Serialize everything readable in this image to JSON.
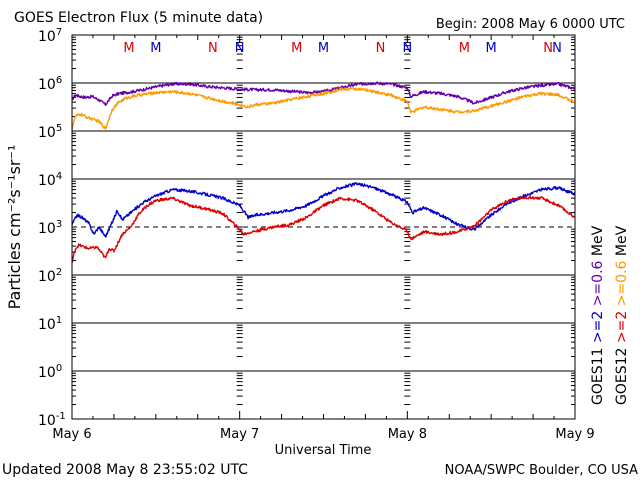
{
  "chart_data": {
    "type": "line",
    "title": "GOES Electron Flux (5 minute data)",
    "begin_label": "Begin: 2008 May 6 0000 UTC",
    "xlabel": "Universal Time",
    "ylabel": "Particles cm⁻²s⁻¹sr⁻¹",
    "footer_left": "Updated 2008 May  8 23:55:02 UTC",
    "footer_right": "NOAA/SWPC Boulder, CO USA",
    "x_unit": "days since 2008-05-06 00:00 UTC",
    "xlim": [
      0,
      3
    ],
    "x_ticks": [
      {
        "value": 0,
        "label": "May 6"
      },
      {
        "value": 1,
        "label": "May 7"
      },
      {
        "value": 2,
        "label": "May 8"
      },
      {
        "value": 3,
        "label": "May 9"
      }
    ],
    "y_scale": "log",
    "ylim_exponent": [
      -1,
      7
    ],
    "y_ticks": [
      {
        "exp": 7,
        "base": "10",
        "sup": "7"
      },
      {
        "exp": 6,
        "base": "10",
        "sup": "6"
      },
      {
        "exp": 5,
        "base": "10",
        "sup": "5"
      },
      {
        "exp": 4,
        "base": "10",
        "sup": "4"
      },
      {
        "exp": 3,
        "base": "10",
        "sup": "3"
      },
      {
        "exp": 2,
        "base": "10",
        "sup": "2"
      },
      {
        "exp": 1,
        "base": "10",
        "sup": "1"
      },
      {
        "exp": 0,
        "base": "10",
        "sup": "0"
      },
      {
        "exp": -1,
        "base": "10",
        "sup": "-1"
      }
    ],
    "threshold_exponent": 3,
    "mn_markers": [
      {
        "x": 0.34,
        "label": "M",
        "color": "#dd0000"
      },
      {
        "x": 0.5,
        "label": "M",
        "color": "#0000cc"
      },
      {
        "x": 0.84,
        "label": "N",
        "color": "#dd0000"
      },
      {
        "x": 1.0,
        "label": "N",
        "color": "#0000cc"
      },
      {
        "x": 1.34,
        "label": "M",
        "color": "#dd0000"
      },
      {
        "x": 1.5,
        "label": "M",
        "color": "#0000cc"
      },
      {
        "x": 1.84,
        "label": "N",
        "color": "#dd0000"
      },
      {
        "x": 2.0,
        "label": "N",
        "color": "#0000cc"
      },
      {
        "x": 2.34,
        "label": "M",
        "color": "#dd0000"
      },
      {
        "x": 2.5,
        "label": "M",
        "color": "#0000cc"
      },
      {
        "x": 2.84,
        "label": "N",
        "color": "#dd0000"
      },
      {
        "x": 3.0,
        "label": "N",
        "color": "#0000cc"
      }
    ],
    "legend": {
      "goes11_label": "GOES11",
      "goes12_label": "GOES12",
      "goes11_entries": [
        {
          "text": ">=2",
          "color": "#0000cc"
        },
        {
          "text": ">=0.6",
          "color": "#6600aa"
        }
      ],
      "goes12_entries": [
        {
          "text": ">=2",
          "color": "#dd0000"
        },
        {
          "text": ">=0.6",
          "color": "#ff9900"
        }
      ],
      "unit_label": "MeV"
    },
    "series": [
      {
        "name": "GOES11 >=0.6 MeV",
        "color": "#6600aa",
        "x": [
          0,
          0.02,
          0.05,
          0.08,
          0.12,
          0.16,
          0.2,
          0.24,
          0.28,
          0.32,
          0.36,
          0.42,
          0.5,
          0.6,
          0.7,
          0.8,
          0.9,
          1.0,
          1.1,
          1.2,
          1.3,
          1.4,
          1.5,
          1.6,
          1.7,
          1.8,
          1.9,
          2.0,
          2.02,
          2.1,
          2.2,
          2.3,
          2.4,
          2.5,
          2.6,
          2.7,
          2.8,
          2.9,
          3.0
        ],
        "y_exp": [
          5.65,
          5.75,
          5.72,
          5.7,
          5.72,
          5.65,
          5.55,
          5.73,
          5.78,
          5.8,
          5.82,
          5.86,
          5.92,
          5.98,
          5.98,
          5.93,
          5.9,
          5.87,
          5.86,
          5.86,
          5.83,
          5.8,
          5.82,
          5.9,
          5.97,
          6.0,
          5.98,
          5.9,
          5.72,
          5.82,
          5.78,
          5.72,
          5.58,
          5.7,
          5.82,
          5.9,
          5.95,
          5.98,
          5.88
        ]
      },
      {
        "name": "GOES12 >=0.6 MeV",
        "color": "#ff9900",
        "x": [
          0,
          0.02,
          0.05,
          0.08,
          0.12,
          0.16,
          0.2,
          0.24,
          0.28,
          0.32,
          0.36,
          0.42,
          0.5,
          0.6,
          0.7,
          0.8,
          0.9,
          1.0,
          1.05,
          1.1,
          1.2,
          1.3,
          1.4,
          1.5,
          1.6,
          1.7,
          1.8,
          1.9,
          2.0,
          2.02,
          2.1,
          2.2,
          2.3,
          2.4,
          2.5,
          2.6,
          2.7,
          2.8,
          2.9,
          3.0
        ],
        "y_exp": [
          5.05,
          5.3,
          5.35,
          5.3,
          5.25,
          5.2,
          5.05,
          5.45,
          5.6,
          5.68,
          5.72,
          5.76,
          5.8,
          5.82,
          5.78,
          5.7,
          5.62,
          5.55,
          5.5,
          5.55,
          5.58,
          5.65,
          5.72,
          5.78,
          5.87,
          5.88,
          5.82,
          5.75,
          5.62,
          5.38,
          5.5,
          5.45,
          5.4,
          5.42,
          5.52,
          5.62,
          5.72,
          5.78,
          5.75,
          5.6
        ]
      },
      {
        "name": "GOES11 >=2 MeV",
        "color": "#0000cc",
        "x": [
          0,
          0.03,
          0.06,
          0.1,
          0.13,
          0.16,
          0.2,
          0.24,
          0.27,
          0.3,
          0.35,
          0.42,
          0.5,
          0.6,
          0.7,
          0.8,
          0.9,
          1.0,
          1.05,
          1.1,
          1.2,
          1.3,
          1.4,
          1.5,
          1.6,
          1.7,
          1.8,
          1.9,
          2.0,
          2.03,
          2.1,
          2.2,
          2.3,
          2.4,
          2.5,
          2.6,
          2.7,
          2.8,
          2.9,
          3.0
        ],
        "y_exp": [
          3.05,
          3.25,
          3.2,
          3.08,
          2.85,
          3.0,
          2.8,
          3.1,
          3.35,
          3.15,
          3.3,
          3.5,
          3.65,
          3.78,
          3.75,
          3.68,
          3.6,
          3.45,
          3.2,
          3.25,
          3.3,
          3.35,
          3.45,
          3.65,
          3.82,
          3.9,
          3.82,
          3.68,
          3.52,
          3.3,
          3.4,
          3.25,
          3.05,
          2.95,
          3.25,
          3.5,
          3.65,
          3.78,
          3.82,
          3.68
        ]
      },
      {
        "name": "GOES12 >=2 MeV",
        "color": "#dd0000",
        "x": [
          0,
          0.02,
          0.04,
          0.06,
          0.1,
          0.15,
          0.2,
          0.22,
          0.25,
          0.3,
          0.35,
          0.4,
          0.45,
          0.5,
          0.6,
          0.7,
          0.8,
          0.9,
          1.0,
          1.02,
          1.1,
          1.2,
          1.3,
          1.4,
          1.5,
          1.6,
          1.7,
          1.8,
          1.9,
          2.0,
          2.02,
          2.1,
          2.2,
          2.3,
          2.4,
          2.5,
          2.6,
          2.7,
          2.8,
          2.9,
          3.0
        ],
        "y_exp": [
          2.25,
          2.55,
          2.62,
          2.6,
          2.55,
          2.58,
          2.35,
          2.55,
          2.5,
          2.85,
          3.0,
          3.28,
          3.45,
          3.55,
          3.6,
          3.45,
          3.38,
          3.28,
          2.95,
          2.85,
          2.92,
          3.0,
          3.05,
          3.2,
          3.45,
          3.6,
          3.55,
          3.35,
          3.1,
          2.92,
          2.75,
          2.9,
          2.85,
          2.9,
          3.02,
          3.35,
          3.55,
          3.62,
          3.6,
          3.45,
          3.2
        ]
      }
    ]
  }
}
